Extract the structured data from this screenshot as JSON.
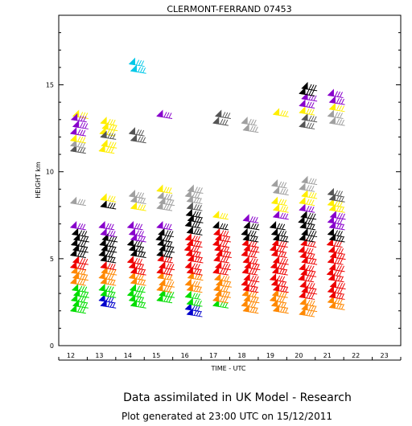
{
  "chart_data": {
    "type": "wind-barb time-height",
    "title": "CLERMONT-FERRAND 07453",
    "xlabel": "TIME - UTC",
    "ylabel": "HEIGHT km",
    "x_range": [
      12,
      24
    ],
    "y_range": [
      0,
      19
    ],
    "x_ticks": [
      "12",
      "13",
      "14",
      "15",
      "16",
      "17",
      "18",
      "19",
      "20",
      "21",
      "22",
      "23"
    ],
    "y_ticks": [
      "0",
      "5",
      "10",
      "15"
    ],
    "grid": false,
    "colors": {
      "green": "#00dd00",
      "blue": "#0000cc",
      "orange": "#ff8800",
      "red": "#ee0000",
      "black": "#000000",
      "purple": "#8800cc",
      "gray": "#a0a0a0",
      "darkgray": "#555555",
      "yellow": "#ffee00",
      "cyan": "#00c8e8"
    },
    "columns": [
      {
        "time": 12.7,
        "groups": [
          {
            "color": "green",
            "heights": [
              2.0,
              2.3,
              2.6,
              2.9,
              3.2
            ]
          },
          {
            "color": "orange",
            "heights": [
              3.6,
              3.9,
              4.2
            ]
          },
          {
            "color": "red",
            "heights": [
              4.5,
              4.8
            ]
          },
          {
            "color": "black",
            "heights": [
              5.2,
              5.5,
              5.8,
              6.1,
              6.4
            ]
          },
          {
            "color": "purple",
            "heights": [
              6.8
            ]
          },
          {
            "color": "gray",
            "heights": [
              8.2
            ]
          },
          {
            "color": "darkgray",
            "heights": [
              11.2
            ]
          },
          {
            "color": "gray",
            "heights": [
              11.5
            ]
          },
          {
            "color": "yellow",
            "heights": [
              11.8,
              13.2
            ]
          },
          {
            "color": "purple",
            "heights": [
              12.2,
              12.6,
              13.0
            ]
          }
        ]
      },
      {
        "time": 13.7,
        "groups": [
          {
            "color": "blue",
            "heights": [
              2.3,
              2.6
            ]
          },
          {
            "color": "green",
            "heights": [
              2.9,
              3.2
            ]
          },
          {
            "color": "orange",
            "heights": [
              3.6,
              3.9,
              4.2
            ]
          },
          {
            "color": "red",
            "heights": [
              4.5
            ]
          },
          {
            "color": "black",
            "heights": [
              4.9,
              5.2,
              5.5,
              5.8,
              6.1
            ]
          },
          {
            "color": "purple",
            "heights": [
              6.4,
              6.8
            ]
          },
          {
            "color": "black",
            "heights": [
              8.0
            ]
          },
          {
            "color": "yellow",
            "heights": [
              8.4,
              11.2,
              11.5,
              12.2,
              12.5,
              12.8
            ]
          },
          {
            "color": "darkgray",
            "heights": [
              12.0
            ]
          }
        ]
      },
      {
        "time": 14.7,
        "groups": [
          {
            "color": "green",
            "heights": [
              2.3,
              2.6,
              2.9,
              3.2
            ]
          },
          {
            "color": "orange",
            "heights": [
              3.6,
              3.9
            ]
          },
          {
            "color": "red",
            "heights": [
              4.2,
              4.5,
              4.8
            ]
          },
          {
            "color": "black",
            "heights": [
              5.2,
              5.5,
              5.8
            ]
          },
          {
            "color": "purple",
            "heights": [
              6.1,
              6.4,
              6.8
            ]
          },
          {
            "color": "yellow",
            "heights": [
              7.9
            ]
          },
          {
            "color": "gray",
            "heights": [
              8.3,
              8.6
            ]
          },
          {
            "color": "darkgray",
            "heights": [
              11.8,
              12.2
            ]
          },
          {
            "color": "cyan",
            "heights": [
              15.8,
              16.2
            ]
          }
        ]
      },
      {
        "time": 15.7,
        "groups": [
          {
            "color": "green",
            "heights": [
              2.6,
              2.9
            ]
          },
          {
            "color": "orange",
            "heights": [
              3.2,
              3.5,
              3.9
            ]
          },
          {
            "color": "red",
            "heights": [
              4.2,
              4.5,
              4.9
            ]
          },
          {
            "color": "black",
            "heights": [
              5.2,
              5.5,
              5.8,
              6.1,
              6.4
            ]
          },
          {
            "color": "purple",
            "heights": [
              6.8
            ]
          },
          {
            "color": "gray",
            "heights": [
              7.9,
              8.2,
              8.5
            ]
          },
          {
            "color": "yellow",
            "heights": [
              8.9
            ]
          },
          {
            "color": "purple",
            "heights": [
              13.2
            ]
          }
        ]
      },
      {
        "time": 16.7,
        "groups": [
          {
            "color": "blue",
            "heights": [
              1.8,
              2.1
            ]
          },
          {
            "color": "green",
            "heights": [
              2.4,
              2.8
            ]
          },
          {
            "color": "orange",
            "heights": [
              3.2,
              3.5,
              3.9
            ]
          },
          {
            "color": "red",
            "heights": [
              4.2,
              4.5,
              4.9,
              5.2,
              5.5,
              5.8,
              6.1
            ]
          },
          {
            "color": "black",
            "heights": [
              6.5,
              6.9,
              7.2,
              7.5
            ]
          },
          {
            "color": "darkgray",
            "heights": [
              7.9
            ]
          },
          {
            "color": "gray",
            "heights": [
              8.3,
              8.6,
              8.9
            ]
          }
        ]
      },
      {
        "time": 17.7,
        "groups": [
          {
            "color": "green",
            "heights": [
              2.3
            ]
          },
          {
            "color": "orange",
            "heights": [
              2.6,
              2.9,
              3.2,
              3.5,
              3.8
            ]
          },
          {
            "color": "red",
            "heights": [
              4.2,
              4.5,
              4.9,
              5.2,
              5.5,
              5.8,
              6.1,
              6.4
            ]
          },
          {
            "color": "black",
            "heights": [
              6.8
            ]
          },
          {
            "color": "yellow",
            "heights": [
              7.4
            ]
          },
          {
            "color": "darkgray",
            "heights": [
              12.8,
              13.2
            ]
          }
        ]
      },
      {
        "time": 18.7,
        "groups": [
          {
            "color": "orange",
            "heights": [
              2.0,
              2.3,
              2.6,
              2.9
            ]
          },
          {
            "color": "red",
            "heights": [
              3.2,
              3.5,
              3.8,
              4.2,
              4.5,
              4.8,
              5.2,
              5.5,
              5.8
            ]
          },
          {
            "color": "black",
            "heights": [
              6.1,
              6.4,
              6.8
            ]
          },
          {
            "color": "purple",
            "heights": [
              7.2
            ]
          },
          {
            "color": "gray",
            "heights": [
              12.4,
              12.8
            ]
          }
        ]
      },
      {
        "time": 19.7,
        "groups": [
          {
            "color": "orange",
            "heights": [
              2.0,
              2.3,
              2.6,
              2.9
            ]
          },
          {
            "color": "red",
            "heights": [
              3.2,
              3.5,
              3.8,
              4.2,
              4.5,
              4.8,
              5.2,
              5.5,
              5.8
            ]
          },
          {
            "color": "black",
            "heights": [
              6.1,
              6.4,
              6.8
            ]
          },
          {
            "color": "purple",
            "heights": [
              7.4
            ]
          },
          {
            "color": "yellow",
            "heights": [
              7.8,
              8.2
            ]
          },
          {
            "color": "gray",
            "heights": [
              8.8,
              9.2
            ]
          },
          {
            "color": "yellow",
            "heights": [
              13.3
            ]
          }
        ]
      },
      {
        "time": 20.7,
        "groups": [
          {
            "color": "orange",
            "heights": [
              1.8,
              2.1,
              2.4
            ]
          },
          {
            "color": "red",
            "heights": [
              2.8,
              3.1,
              3.4,
              3.8,
              4.1,
              4.4,
              4.8,
              5.1,
              5.4,
              5.8
            ]
          },
          {
            "color": "black",
            "heights": [
              6.1,
              6.4,
              6.8,
              7.1,
              7.4
            ]
          },
          {
            "color": "purple",
            "heights": [
              7.8
            ]
          },
          {
            "color": "yellow",
            "heights": [
              8.2,
              8.6
            ]
          },
          {
            "color": "gray",
            "heights": [
              9.0,
              9.4
            ]
          },
          {
            "color": "darkgray",
            "heights": [
              12.6,
              13.0
            ]
          },
          {
            "color": "yellow",
            "heights": [
              13.4
            ]
          },
          {
            "color": "purple",
            "heights": [
              13.8,
              14.2
            ]
          },
          {
            "color": "black",
            "heights": [
              14.5,
              14.8
            ]
          }
        ]
      },
      {
        "time": 21.7,
        "groups": [
          {
            "color": "orange",
            "heights": [
              2.2,
              2.5
            ]
          },
          {
            "color": "red",
            "heights": [
              2.8,
              3.1,
              3.4,
              3.8,
              4.1,
              4.4,
              4.8,
              5.1,
              5.4,
              5.8
            ]
          },
          {
            "color": "black",
            "heights": [
              6.1,
              6.4
            ]
          },
          {
            "color": "purple",
            "heights": [
              6.8,
              7.1,
              7.4
            ]
          },
          {
            "color": "yellow",
            "heights": [
              7.8,
              8.1
            ]
          },
          {
            "color": "darkgray",
            "heights": [
              8.4,
              8.7
            ]
          },
          {
            "color": "gray",
            "heights": [
              12.8,
              13.2
            ]
          },
          {
            "color": "yellow",
            "heights": [
              13.6
            ]
          },
          {
            "color": "purple",
            "heights": [
              14.0,
              14.4
            ]
          }
        ]
      }
    ]
  },
  "footer": {
    "title": "Data assimilated in UK Model - Research",
    "generated": "Plot generated at 23:00 UTC on 15/12/2011"
  }
}
